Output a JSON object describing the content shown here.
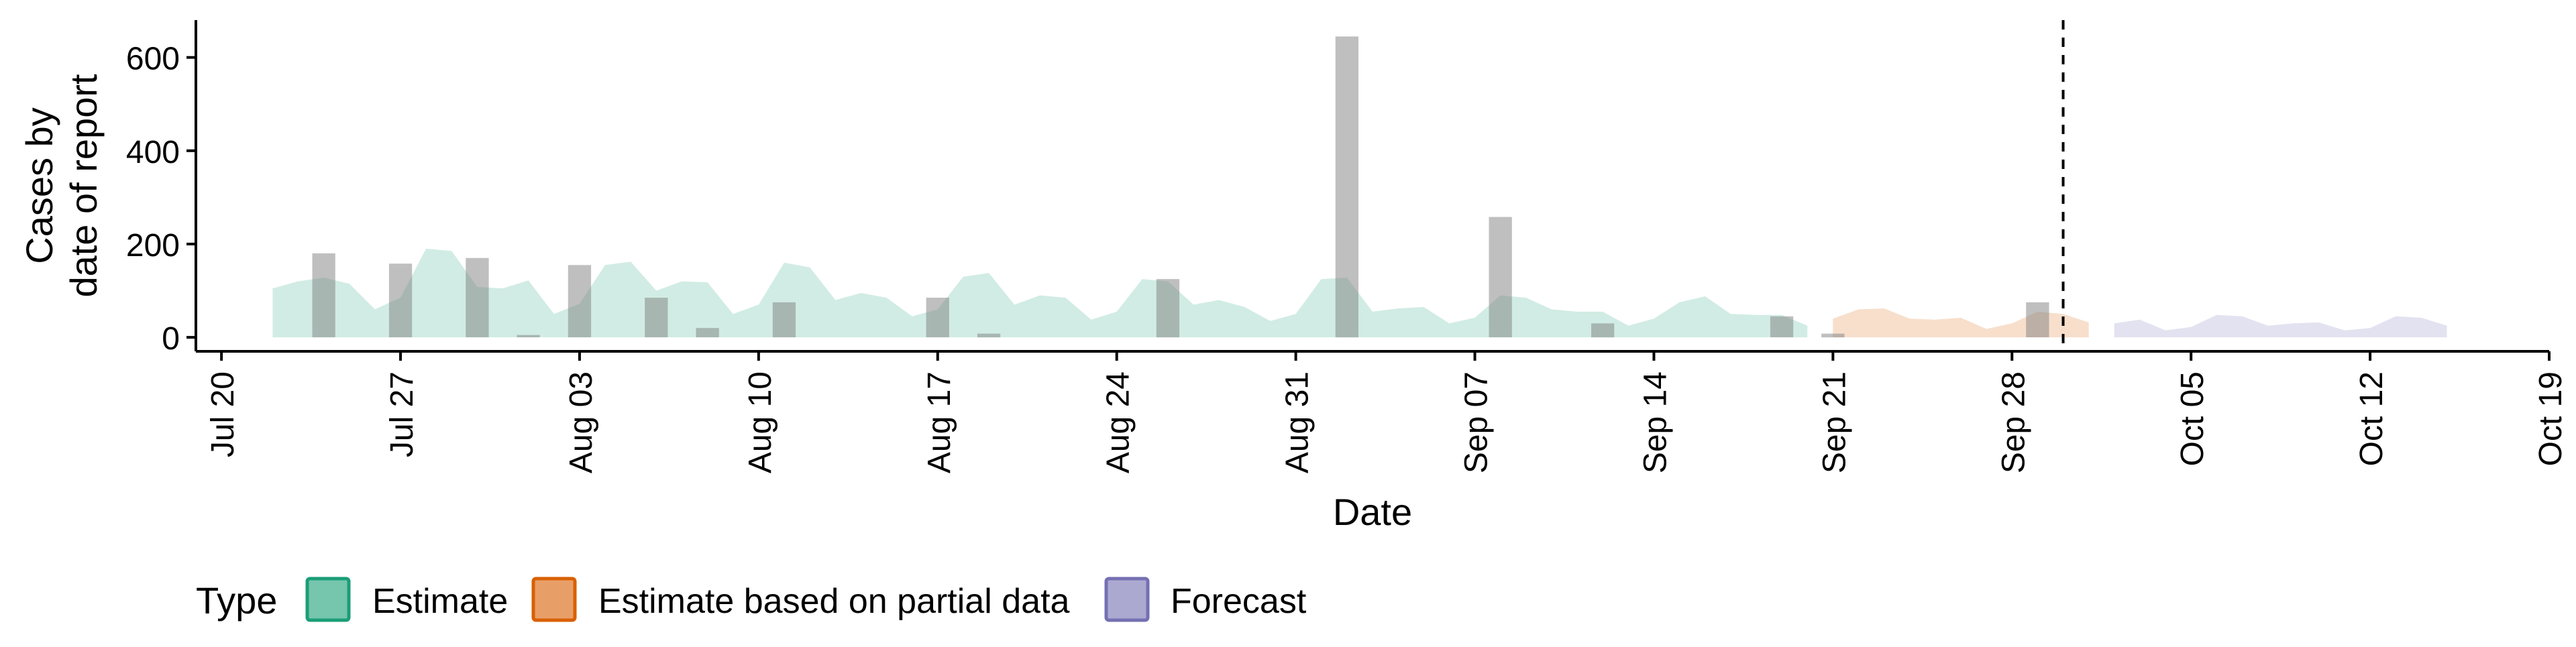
{
  "chart_data": {
    "type": "area",
    "xlabel": "Date",
    "ylabel_lines": [
      "Cases by",
      "date of report"
    ],
    "yticks": [
      0,
      200,
      400,
      600
    ],
    "ylim": [
      -30,
      680
    ],
    "xlim": [
      "2020-07-19",
      "2020-10-19"
    ],
    "xticks": [
      "2020-07-20",
      "2020-07-27",
      "2020-08-03",
      "2020-08-10",
      "2020-08-17",
      "2020-08-24",
      "2020-08-31",
      "2020-09-07",
      "2020-09-14",
      "2020-09-21",
      "2020-09-28",
      "2020-10-05",
      "2020-10-12",
      "2020-10-19"
    ],
    "xtick_labels": [
      "Jul 20",
      "Jul 27",
      "Aug 03",
      "Aug 10",
      "Aug 17",
      "Aug 24",
      "Aug 31",
      "Sep 07",
      "Sep 14",
      "Sep 21",
      "Sep 28",
      "Oct 05",
      "Oct 12",
      "Oct 19"
    ],
    "forecast_date": "2020-09-30",
    "legend": {
      "title": "Type",
      "position": "bottom",
      "entries": [
        {
          "label": "Estimate",
          "fill": "#1b9e77",
          "stroke": "#1b9e77"
        },
        {
          "label": "Estimate based on partial data",
          "fill": "#d95f02",
          "stroke": "#d95f02"
        },
        {
          "label": "Forecast",
          "fill": "#7570b3",
          "stroke": "#7570b3"
        }
      ]
    },
    "bar_color": "#7f7f7f",
    "reported_cases": [
      {
        "date": "2020-07-24",
        "value": 180
      },
      {
        "date": "2020-07-27",
        "value": 158
      },
      {
        "date": "2020-07-30",
        "value": 170
      },
      {
        "date": "2020-08-01",
        "value": 5
      },
      {
        "date": "2020-08-03",
        "value": 155
      },
      {
        "date": "2020-08-06",
        "value": 85
      },
      {
        "date": "2020-08-08",
        "value": 20
      },
      {
        "date": "2020-08-11",
        "value": 75
      },
      {
        "date": "2020-08-17",
        "value": 85
      },
      {
        "date": "2020-08-19",
        "value": 8
      },
      {
        "date": "2020-08-26",
        "value": 125
      },
      {
        "date": "2020-09-02",
        "value": 645
      },
      {
        "date": "2020-09-08",
        "value": 258
      },
      {
        "date": "2020-09-12",
        "value": 30
      },
      {
        "date": "2020-09-19",
        "value": 45
      },
      {
        "date": "2020-09-21",
        "value": 8
      },
      {
        "date": "2020-09-29",
        "value": 75
      }
    ],
    "series": [
      {
        "name": "Estimate",
        "color": "#1b9e77",
        "points": [
          [
            "2020-07-22",
            0,
            105
          ],
          [
            "2020-07-23",
            0,
            120
          ],
          [
            "2020-07-24",
            0,
            128
          ],
          [
            "2020-07-25",
            0,
            115
          ],
          [
            "2020-07-26",
            0,
            60
          ],
          [
            "2020-07-27",
            0,
            85
          ],
          [
            "2020-07-28",
            0,
            190
          ],
          [
            "2020-07-29",
            0,
            185
          ],
          [
            "2020-07-30",
            0,
            108
          ],
          [
            "2020-07-31",
            0,
            105
          ],
          [
            "2020-08-01",
            0,
            122
          ],
          [
            "2020-08-02",
            0,
            50
          ],
          [
            "2020-08-03",
            0,
            72
          ],
          [
            "2020-08-04",
            0,
            155
          ],
          [
            "2020-08-05",
            0,
            162
          ],
          [
            "2020-08-06",
            0,
            100
          ],
          [
            "2020-08-07",
            0,
            120
          ],
          [
            "2020-08-08",
            0,
            118
          ],
          [
            "2020-08-09",
            0,
            50
          ],
          [
            "2020-08-10",
            0,
            70
          ],
          [
            "2020-08-11",
            0,
            160
          ],
          [
            "2020-08-12",
            0,
            150
          ],
          [
            "2020-08-13",
            0,
            80
          ],
          [
            "2020-08-14",
            0,
            95
          ],
          [
            "2020-08-15",
            0,
            85
          ],
          [
            "2020-08-16",
            0,
            45
          ],
          [
            "2020-08-17",
            0,
            60
          ],
          [
            "2020-08-18",
            0,
            130
          ],
          [
            "2020-08-19",
            0,
            138
          ],
          [
            "2020-08-20",
            0,
            70
          ],
          [
            "2020-08-21",
            0,
            90
          ],
          [
            "2020-08-22",
            0,
            85
          ],
          [
            "2020-08-23",
            0,
            38
          ],
          [
            "2020-08-24",
            0,
            55
          ],
          [
            "2020-08-25",
            0,
            125
          ],
          [
            "2020-08-26",
            0,
            120
          ],
          [
            "2020-08-27",
            0,
            70
          ],
          [
            "2020-08-28",
            0,
            80
          ],
          [
            "2020-08-29",
            0,
            65
          ],
          [
            "2020-08-30",
            0,
            35
          ],
          [
            "2020-08-31",
            0,
            50
          ],
          [
            "2020-09-01",
            0,
            125
          ],
          [
            "2020-09-02",
            0,
            128
          ],
          [
            "2020-09-03",
            0,
            55
          ],
          [
            "2020-09-04",
            0,
            62
          ],
          [
            "2020-09-05",
            0,
            65
          ],
          [
            "2020-09-06",
            0,
            30
          ],
          [
            "2020-09-07",
            0,
            42
          ],
          [
            "2020-09-08",
            0,
            90
          ],
          [
            "2020-09-09",
            0,
            85
          ],
          [
            "2020-09-10",
            0,
            60
          ],
          [
            "2020-09-11",
            0,
            55
          ],
          [
            "2020-09-12",
            0,
            55
          ],
          [
            "2020-09-13",
            0,
            25
          ],
          [
            "2020-09-14",
            0,
            40
          ],
          [
            "2020-09-15",
            0,
            75
          ],
          [
            "2020-09-16",
            0,
            88
          ],
          [
            "2020-09-17",
            0,
            50
          ],
          [
            "2020-09-18",
            0,
            48
          ],
          [
            "2020-09-19",
            0,
            48
          ],
          [
            "2020-09-20",
            0,
            25
          ]
        ]
      },
      {
        "name": "Estimate based on partial data",
        "color": "#d95f02",
        "points": [
          [
            "2020-09-21",
            0,
            40
          ],
          [
            "2020-09-22",
            0,
            60
          ],
          [
            "2020-09-23",
            0,
            62
          ],
          [
            "2020-09-24",
            0,
            40
          ],
          [
            "2020-09-25",
            0,
            38
          ],
          [
            "2020-09-26",
            0,
            42
          ],
          [
            "2020-09-27",
            0,
            18
          ],
          [
            "2020-09-28",
            0,
            30
          ],
          [
            "2020-09-29",
            0,
            55
          ],
          [
            "2020-09-30",
            0,
            50
          ],
          [
            "2020-10-01",
            0,
            32
          ]
        ]
      },
      {
        "name": "Forecast",
        "color": "#7570b3",
        "points": [
          [
            "2020-10-02",
            0,
            30
          ],
          [
            "2020-10-03",
            0,
            38
          ],
          [
            "2020-10-04",
            0,
            15
          ],
          [
            "2020-10-05",
            0,
            22
          ],
          [
            "2020-10-06",
            0,
            48
          ],
          [
            "2020-10-07",
            0,
            45
          ],
          [
            "2020-10-08",
            0,
            25
          ],
          [
            "2020-10-09",
            0,
            30
          ],
          [
            "2020-10-10",
            0,
            32
          ],
          [
            "2020-10-11",
            0,
            15
          ],
          [
            "2020-10-12",
            0,
            20
          ],
          [
            "2020-10-13",
            0,
            45
          ],
          [
            "2020-10-14",
            0,
            42
          ],
          [
            "2020-10-15",
            0,
            25
          ]
        ]
      }
    ]
  }
}
